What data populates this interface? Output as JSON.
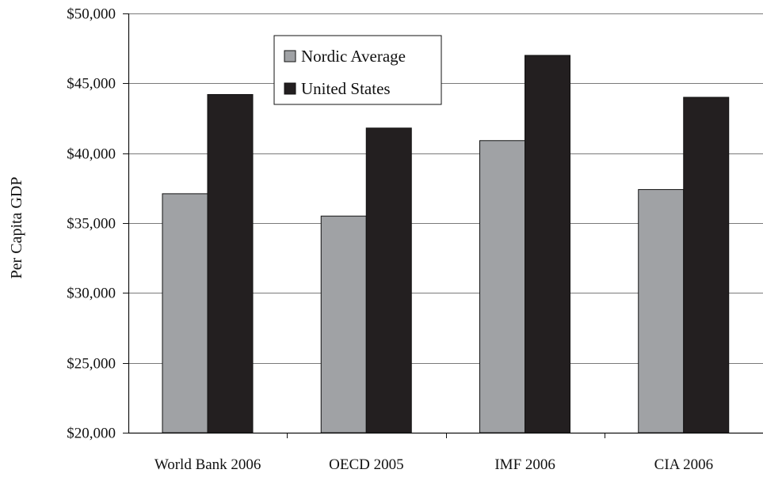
{
  "chart_data": {
    "type": "bar",
    "title": "",
    "xlabel": "",
    "ylabel": "Per Capita GDP",
    "ylim": [
      20000,
      50000
    ],
    "yticks": [
      20000,
      25000,
      30000,
      35000,
      40000,
      45000,
      50000
    ],
    "ytick_labels": [
      "$20,000",
      "$25,000",
      "$30,000",
      "$35,000",
      "$40,000",
      "$45,000",
      "$50,000"
    ],
    "categories": [
      "World Bank 2006",
      "OECD 2005",
      "IMF 2006",
      "CIA 2006"
    ],
    "series": [
      {
        "name": "Nordic Average",
        "color": "#a0a2a5",
        "values": [
          37100,
          35500,
          40900,
          37400
        ]
      },
      {
        "name": "United States",
        "color": "#231f20",
        "values": [
          44200,
          41800,
          47000,
          44000
        ]
      }
    ],
    "grid": true,
    "legend_position": "top-left"
  }
}
